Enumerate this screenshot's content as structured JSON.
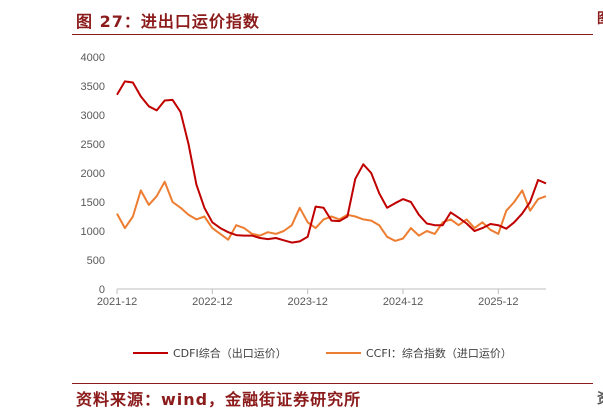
{
  "header": {
    "title": "图 27：进出口运价指数"
  },
  "footer": {
    "source": "资料来源：wind，金融街证券研究所"
  },
  "edge": {
    "top_glyph": "图",
    "bottom_glyph": "资"
  },
  "colors": {
    "cdfi": "#c00000",
    "ccfi": "#ed7d31",
    "accent": "#8c1c1c",
    "axis": "#bfbfbf"
  },
  "chart_data": {
    "type": "line",
    "title": "",
    "xlabel": "",
    "ylabel": "",
    "x_ticks": [
      "2021-12",
      "2022-12",
      "2023-12",
      "2024-12",
      "2025-12"
    ],
    "y_ticks": [
      0,
      500,
      1000,
      1500,
      2000,
      2500,
      3000,
      3500,
      4000
    ],
    "ylim": [
      0,
      4000
    ],
    "xlim": [
      "2021-12",
      "2026-06"
    ],
    "grid": false,
    "legend_position": "bottom",
    "series": [
      {
        "name": "CDFI综合（出口运价）",
        "color": "#c00000",
        "points": [
          [
            "2021-12",
            3350
          ],
          [
            "2022-01",
            3580
          ],
          [
            "2022-02",
            3560
          ],
          [
            "2022-03",
            3320
          ],
          [
            "2022-04",
            3150
          ],
          [
            "2022-05",
            3080
          ],
          [
            "2022-06",
            3250
          ],
          [
            "2022-07",
            3260
          ],
          [
            "2022-08",
            3050
          ],
          [
            "2022-09",
            2500
          ],
          [
            "2022-10",
            1800
          ],
          [
            "2022-11",
            1400
          ],
          [
            "2022-12",
            1150
          ],
          [
            "2023-01",
            1050
          ],
          [
            "2023-02",
            980
          ],
          [
            "2023-03",
            930
          ],
          [
            "2023-04",
            920
          ],
          [
            "2023-05",
            920
          ],
          [
            "2023-06",
            880
          ],
          [
            "2023-07",
            860
          ],
          [
            "2023-08",
            880
          ],
          [
            "2023-09",
            840
          ],
          [
            "2023-10",
            800
          ],
          [
            "2023-11",
            820
          ],
          [
            "2023-12",
            900
          ],
          [
            "2024-01",
            1420
          ],
          [
            "2024-02",
            1400
          ],
          [
            "2024-03",
            1180
          ],
          [
            "2024-04",
            1170
          ],
          [
            "2024-05",
            1250
          ],
          [
            "2024-06",
            1900
          ],
          [
            "2024-07",
            2150
          ],
          [
            "2024-08",
            2000
          ],
          [
            "2024-09",
            1650
          ],
          [
            "2024-10",
            1400
          ],
          [
            "2024-11",
            1480
          ],
          [
            "2024-12",
            1550
          ],
          [
            "2025-01",
            1500
          ],
          [
            "2025-02",
            1280
          ],
          [
            "2025-03",
            1130
          ],
          [
            "2025-04",
            1100
          ],
          [
            "2025-05",
            1100
          ],
          [
            "2025-06",
            1320
          ],
          [
            "2025-07",
            1230
          ],
          [
            "2025-08",
            1130
          ],
          [
            "2025-09",
            1000
          ],
          [
            "2025-10",
            1050
          ],
          [
            "2025-11",
            1120
          ],
          [
            "2025-12",
            1100
          ],
          [
            "2026-01",
            1040
          ],
          [
            "2026-02",
            1150
          ],
          [
            "2026-03",
            1300
          ],
          [
            "2026-04",
            1500
          ],
          [
            "2026-05",
            1880
          ],
          [
            "2026-06",
            1820
          ]
        ]
      },
      {
        "name": "CCFI：综合指数（进口运价）",
        "color": "#ed7d31",
        "points": [
          [
            "2021-12",
            1300
          ],
          [
            "2022-01",
            1050
          ],
          [
            "2022-02",
            1250
          ],
          [
            "2022-03",
            1700
          ],
          [
            "2022-04",
            1450
          ],
          [
            "2022-05",
            1600
          ],
          [
            "2022-06",
            1850
          ],
          [
            "2022-07",
            1500
          ],
          [
            "2022-08",
            1400
          ],
          [
            "2022-09",
            1280
          ],
          [
            "2022-10",
            1200
          ],
          [
            "2022-11",
            1250
          ],
          [
            "2022-12",
            1050
          ],
          [
            "2023-01",
            950
          ],
          [
            "2023-02",
            850
          ],
          [
            "2023-03",
            1100
          ],
          [
            "2023-04",
            1050
          ],
          [
            "2023-05",
            950
          ],
          [
            "2023-06",
            920
          ],
          [
            "2023-07",
            980
          ],
          [
            "2023-08",
            950
          ],
          [
            "2023-09",
            1000
          ],
          [
            "2023-10",
            1100
          ],
          [
            "2023-11",
            1400
          ],
          [
            "2023-12",
            1150
          ],
          [
            "2024-01",
            1050
          ],
          [
            "2024-02",
            1200
          ],
          [
            "2024-03",
            1250
          ],
          [
            "2024-04",
            1200
          ],
          [
            "2024-05",
            1280
          ],
          [
            "2024-06",
            1250
          ],
          [
            "2024-07",
            1200
          ],
          [
            "2024-08",
            1180
          ],
          [
            "2024-09",
            1100
          ],
          [
            "2024-10",
            900
          ],
          [
            "2024-11",
            830
          ],
          [
            "2024-12",
            870
          ],
          [
            "2025-01",
            1050
          ],
          [
            "2025-02",
            920
          ],
          [
            "2025-03",
            1000
          ],
          [
            "2025-04",
            950
          ],
          [
            "2025-05",
            1150
          ],
          [
            "2025-06",
            1200
          ],
          [
            "2025-07",
            1100
          ],
          [
            "2025-08",
            1200
          ],
          [
            "2025-09",
            1050
          ],
          [
            "2025-10",
            1150
          ],
          [
            "2025-11",
            1020
          ],
          [
            "2025-12",
            950
          ],
          [
            "2026-01",
            1350
          ],
          [
            "2026-02",
            1500
          ],
          [
            "2026-03",
            1700
          ],
          [
            "2026-04",
            1350
          ],
          [
            "2026-05",
            1550
          ],
          [
            "2026-06",
            1600
          ]
        ]
      }
    ]
  }
}
